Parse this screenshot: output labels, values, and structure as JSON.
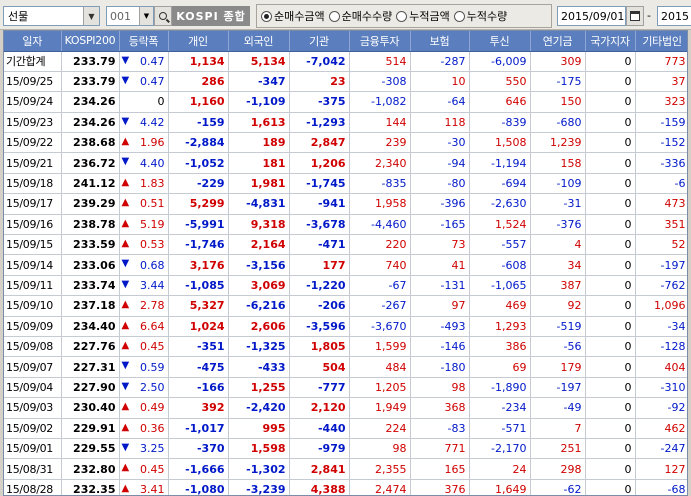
{
  "toolbar": {
    "market_select": "선물",
    "code": "001",
    "code_name": "KOSPI 종합",
    "radios": [
      {
        "label": "순매수금액",
        "checked": true
      },
      {
        "label": "순매수수량",
        "checked": false
      },
      {
        "label": "누적금액",
        "checked": false
      },
      {
        "label": "누적수량",
        "checked": false
      }
    ],
    "start_date": "2015/09/01",
    "tilde": "-",
    "end_date": "2015"
  },
  "table": {
    "headers": [
      "일자",
      "KOSPI200",
      "등락폭",
      "개인",
      "외국인",
      "기관",
      "금융투자",
      "보험",
      "투신",
      "연기금",
      "국가지자",
      "기타법인"
    ],
    "rows": [
      [
        "기간합계",
        "233.79",
        "▼",
        "0.47",
        "1,134",
        "5,134",
        "-7,042",
        "514",
        "-287",
        "-6,009",
        "309",
        "0",
        "773"
      ],
      [
        "15/09/25",
        "233.79",
        "▼",
        "0.47",
        "286",
        "-347",
        "23",
        "-308",
        "10",
        "550",
        "-175",
        "0",
        "37"
      ],
      [
        "15/09/24",
        "234.26",
        "",
        "0",
        "1,160",
        "-1,109",
        "-375",
        "-1,082",
        "-64",
        "646",
        "150",
        "0",
        "323"
      ],
      [
        "15/09/23",
        "234.26",
        "▼",
        "4.42",
        "-159",
        "1,613",
        "-1,293",
        "144",
        "118",
        "-839",
        "-680",
        "0",
        "-159"
      ],
      [
        "15/09/22",
        "238.68",
        "▲",
        "1.96",
        "-2,884",
        "189",
        "2,847",
        "239",
        "-30",
        "1,508",
        "1,239",
        "0",
        "-152"
      ],
      [
        "15/09/21",
        "236.72",
        "▼",
        "4.40",
        "-1,052",
        "181",
        "1,206",
        "2,340",
        "-94",
        "-1,194",
        "158",
        "0",
        "-336"
      ],
      [
        "15/09/18",
        "241.12",
        "▲",
        "1.83",
        "-229",
        "1,981",
        "-1,745",
        "-835",
        "-80",
        "-694",
        "-109",
        "0",
        "-6"
      ],
      [
        "15/09/17",
        "239.29",
        "▲",
        "0.51",
        "5,299",
        "-4,831",
        "-941",
        "1,958",
        "-396",
        "-2,630",
        "-31",
        "0",
        "473"
      ],
      [
        "15/09/16",
        "238.78",
        "▲",
        "5.19",
        "-5,991",
        "9,318",
        "-3,678",
        "-4,460",
        "-165",
        "1,524",
        "-376",
        "0",
        "351"
      ],
      [
        "15/09/15",
        "233.59",
        "▲",
        "0.53",
        "-1,746",
        "2,164",
        "-471",
        "220",
        "73",
        "-557",
        "4",
        "0",
        "52"
      ],
      [
        "15/09/14",
        "233.06",
        "▼",
        "0.68",
        "3,176",
        "-3,156",
        "177",
        "740",
        "41",
        "-608",
        "34",
        "0",
        "-197"
      ],
      [
        "15/09/11",
        "233.74",
        "▼",
        "3.44",
        "-1,085",
        "3,069",
        "-1,220",
        "-67",
        "-131",
        "-1,065",
        "387",
        "0",
        "-762"
      ],
      [
        "15/09/10",
        "237.18",
        "▲",
        "2.78",
        "5,327",
        "-6,216",
        "-206",
        "-267",
        "97",
        "469",
        "92",
        "0",
        "1,096"
      ],
      [
        "15/09/09",
        "234.40",
        "▲",
        "6.64",
        "1,024",
        "2,606",
        "-3,596",
        "-3,670",
        "-493",
        "1,293",
        "-519",
        "0",
        "-34"
      ],
      [
        "15/09/08",
        "227.76",
        "▲",
        "0.45",
        "-351",
        "-1,325",
        "1,805",
        "1,599",
        "-146",
        "386",
        "-56",
        "0",
        "-128"
      ],
      [
        "15/09/07",
        "227.31",
        "▼",
        "0.59",
        "-475",
        "-433",
        "504",
        "484",
        "-180",
        "69",
        "179",
        "0",
        "404"
      ],
      [
        "15/09/04",
        "227.90",
        "▼",
        "2.50",
        "-166",
        "1,255",
        "-777",
        "1,205",
        "98",
        "-1,890",
        "-197",
        "0",
        "-310"
      ],
      [
        "15/09/03",
        "230.40",
        "▲",
        "0.49",
        "392",
        "-2,420",
        "2,120",
        "1,949",
        "368",
        "-234",
        "-49",
        "0",
        "-92"
      ],
      [
        "15/09/02",
        "229.91",
        "▲",
        "0.36",
        "-1,017",
        "995",
        "-440",
        "224",
        "-83",
        "-571",
        "7",
        "0",
        "462"
      ],
      [
        "15/09/01",
        "229.55",
        "▼",
        "3.25",
        "-370",
        "1,598",
        "-979",
        "98",
        "771",
        "-2,170",
        "251",
        "0",
        "-247"
      ],
      [
        "15/08/31",
        "232.80",
        "▲",
        "0.45",
        "-1,666",
        "-1,302",
        "2,841",
        "2,355",
        "165",
        "24",
        "298",
        "0",
        "127"
      ],
      [
        "15/08/28",
        "232.35",
        "▲",
        "3.41",
        "-1,080",
        "-3,239",
        "4,388",
        "2,474",
        "376",
        "1,649",
        "-62",
        "0",
        "-68"
      ]
    ]
  }
}
